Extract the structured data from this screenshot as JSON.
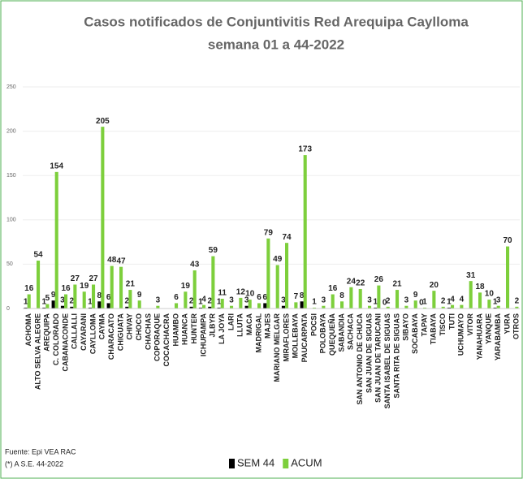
{
  "chart_data": {
    "type": "bar",
    "title": "Casos notificados de Conjuntivitis Red Arequipa Caylloma",
    "subtitle": "semana 01 a 44-2022",
    "source": "Fuente: Epi VEA RAC",
    "note": "(*) A S.E. 44-2022",
    "categories": [
      "ACHOMA",
      "ALTO SELVA ALEGRE",
      "AREQUIPA",
      "C. COLORADO",
      "CABANACONDE",
      "CALLALLI",
      "CAYARANI",
      "CAYLLOMA",
      "CAYMA",
      "CHARACATO",
      "CHIGUATA",
      "CHIVAY",
      "CHOCO",
      "CHACHAS",
      "COPORAQUE",
      "COCACHACRA",
      "HUAMBO",
      "HUANCA",
      "HUNTER",
      "ICHUPAMPA",
      "JLBYR",
      "LA JOYA",
      "LARI",
      "LLUTA",
      "MACA",
      "MADRIGAL",
      "MAJES",
      "MARIANO MELGAR",
      "MIRAFLORES",
      "MOLLEBAYA",
      "PAUCARPATA",
      "POCSI",
      "POLOBAYA",
      "QUEQUEÑA",
      "SABANDIA",
      "SACHACA",
      "SAN ANTONIO DE CHUCA",
      "SAN JUAN DE SIGUAS",
      "SAN JUAN DE TARUCANI",
      "SANTA ISABEL DE SIGUAS",
      "SANTA RITA DE SIGUAS",
      "SIBAYO",
      "SOCABAYA",
      "TAPAY",
      "TIABAYA",
      "TISCO",
      "TUTI",
      "UCHUMAYO",
      "VITOR",
      "YANAHUARA",
      "YANQUE",
      "YARABAMBA",
      "YURA",
      "OTROS"
    ],
    "series": [
      {
        "name": "SEM 44",
        "color": "#000000",
        "values": [
          1,
          null,
          1,
          9,
          3,
          2,
          null,
          1,
          8,
          6,
          null,
          2,
          null,
          null,
          null,
          null,
          null,
          null,
          2,
          1,
          2,
          1,
          null,
          null,
          3,
          null,
          6,
          null,
          3,
          null,
          8,
          null,
          null,
          null,
          null,
          null,
          null,
          null,
          1,
          0,
          null,
          null,
          null,
          0,
          null,
          null,
          1,
          null,
          null,
          null,
          null,
          1,
          null,
          null
        ]
      },
      {
        "name": "ACUM",
        "color": "#7dcf3c",
        "values": [
          16,
          54,
          5,
          154,
          16,
          27,
          19,
          27,
          205,
          48,
          47,
          21,
          9,
          null,
          3,
          null,
          6,
          19,
          43,
          4,
          59,
          11,
          3,
          12,
          10,
          6,
          79,
          49,
          74,
          7,
          173,
          1,
          3,
          16,
          8,
          24,
          22,
          3,
          26,
          2,
          21,
          3,
          9,
          1,
          20,
          2,
          4,
          4,
          31,
          18,
          10,
          3,
          70,
          2
        ]
      }
    ],
    "ylim": [
      0,
      250
    ],
    "yticks": [
      0,
      50,
      100,
      150,
      200,
      250
    ],
    "grid": true
  }
}
